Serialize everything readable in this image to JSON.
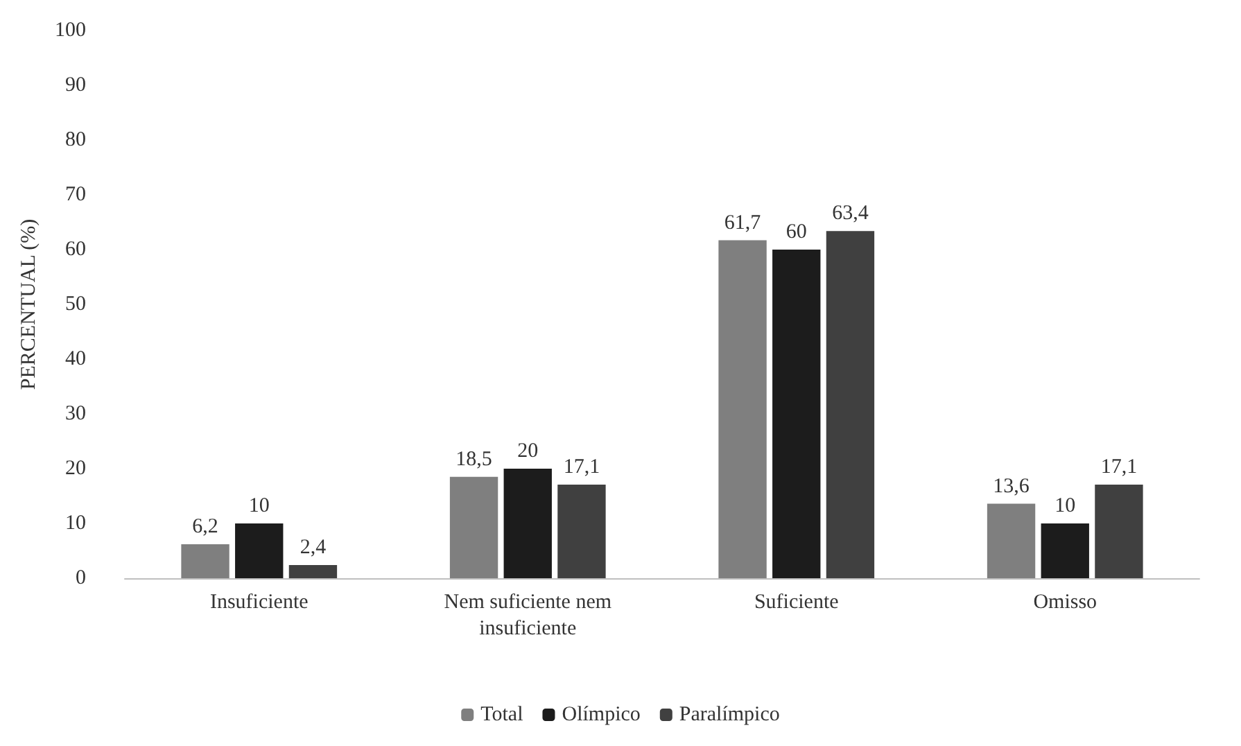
{
  "chart_data": {
    "type": "bar",
    "ylabel": "PERCENTUAL (%)",
    "categories": [
      "Insuficiente",
      "Nem suficiente nem\ninsuficiente",
      "Suficiente",
      "Omisso"
    ],
    "series": [
      {
        "name": "Total",
        "color": "#7f7f7f",
        "values": [
          6.2,
          18.5,
          61.7,
          13.6
        ],
        "value_labels": [
          "6,2",
          "18,5",
          "61,7",
          "13,6"
        ]
      },
      {
        "name": "Olímpico",
        "color": "#1c1c1c",
        "values": [
          10,
          20,
          60,
          10
        ],
        "value_labels": [
          "10",
          "20",
          "60",
          "10"
        ]
      },
      {
        "name": "Paralímpico",
        "color": "#404040",
        "values": [
          2.4,
          17.1,
          63.4,
          17.1
        ],
        "value_labels": [
          "2,4",
          "17,1",
          "63,4",
          "17,1"
        ]
      }
    ],
    "ylim": [
      0,
      100
    ],
    "yticks": [
      0,
      10,
      20,
      30,
      40,
      50,
      60,
      70,
      80,
      90,
      100
    ],
    "grid": false,
    "legend": "bottom"
  }
}
